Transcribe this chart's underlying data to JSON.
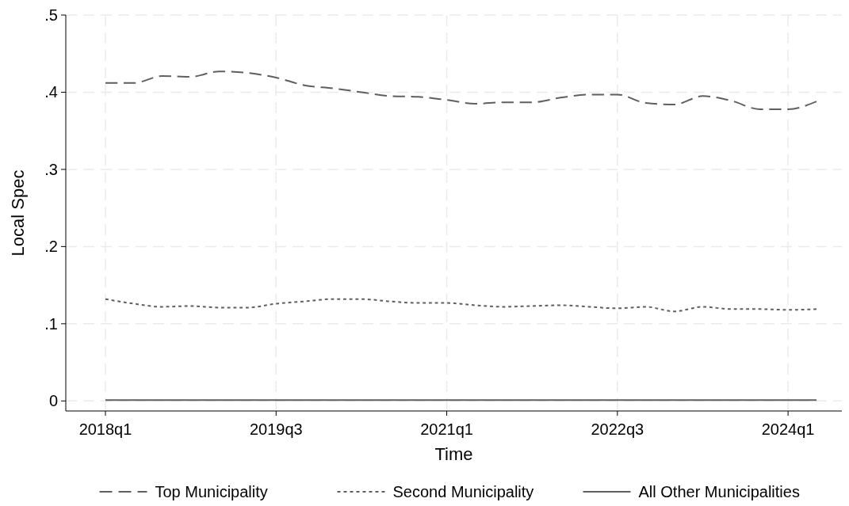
{
  "chart_data": {
    "type": "line",
    "xlabel": "Time",
    "ylabel": "Local Spec",
    "categories": [
      "2018q1",
      null,
      null,
      null,
      null,
      null,
      "2019q3",
      null,
      null,
      null,
      null,
      null,
      "2021q1",
      null,
      null,
      null,
      null,
      null,
      "2022q3",
      null,
      null,
      null,
      null,
      null,
      "2024q1",
      null
    ],
    "series": [
      {
        "name": "Top Municipality",
        "color": "#5f5f5f",
        "line_style": "dashed",
        "values": [
          0.412,
          0.412,
          0.421,
          0.42,
          0.427,
          0.425,
          0.419,
          0.409,
          0.405,
          0.4,
          0.395,
          0.394,
          0.39,
          0.385,
          0.387,
          0.387,
          0.393,
          0.397,
          0.397,
          0.386,
          0.384,
          0.395,
          0.389,
          0.378,
          0.378,
          0.388
        ]
      },
      {
        "name": "Second Municipality",
        "color": "#5f5f5f",
        "line_style": "dotted",
        "values": [
          0.132,
          0.126,
          0.122,
          0.123,
          0.121,
          0.121,
          0.126,
          0.129,
          0.132,
          0.132,
          0.129,
          0.127,
          0.127,
          0.124,
          0.122,
          0.123,
          0.124,
          0.122,
          0.12,
          0.122,
          0.116,
          0.122,
          0.119,
          0.119,
          0.118,
          0.119
        ]
      },
      {
        "name": "All Other Municipalities",
        "color": "#5f5f5f",
        "line_style": "solid",
        "values": [
          0.001,
          0.001,
          0.001,
          0.001,
          0.001,
          0.001,
          0.001,
          0.001,
          0.001,
          0.001,
          0.001,
          0.001,
          0.001,
          0.001,
          0.001,
          0.001,
          0.001,
          0.001,
          0.001,
          0.001,
          0.001,
          0.001,
          0.001,
          0.001,
          0.001,
          0.001
        ]
      }
    ],
    "ylim": [
      -0.013,
      0.5
    ],
    "yticks": [
      {
        "value": 0,
        "label": "0"
      },
      {
        "value": 0.1,
        "label": ".1"
      },
      {
        "value": 0.2,
        "label": ".2"
      },
      {
        "value": 0.3,
        "label": ".3"
      },
      {
        "value": 0.4,
        "label": ".4"
      },
      {
        "value": 0.5,
        "label": ".5"
      }
    ],
    "grid": true,
    "legend": "bottom"
  }
}
